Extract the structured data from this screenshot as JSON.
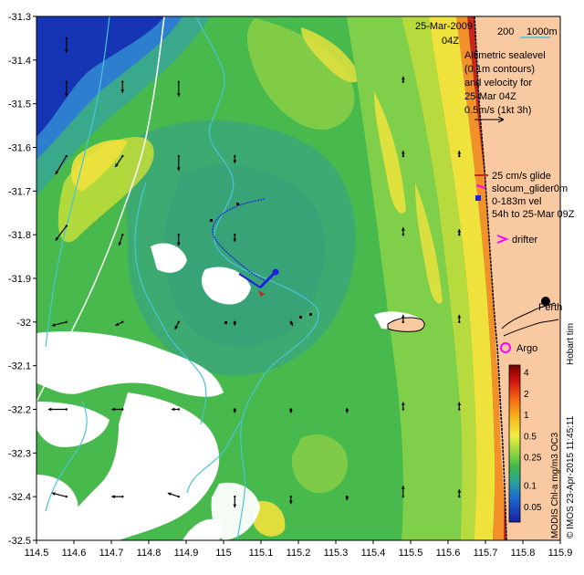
{
  "title": {
    "date": "25-Mar-2009",
    "time": "04Z"
  },
  "depth_legend": {
    "label_200": "200",
    "label_1000": "1000m"
  },
  "altimetry_note": {
    "line1": "Altimetric sealevel",
    "line2": "(0.1m contours)",
    "line3": "and velocity for",
    "line4": "25-Mar 04Z",
    "line5": "0.5m/s (1kt 3h)"
  },
  "glider_legend": {
    "line1": "25 cm/s glide",
    "line2": "slocum_glider0m",
    "line3": "0-183m vel",
    "line4": "54h to 25-Mar 09Z"
  },
  "drifter_label": "drifter",
  "argo_label": "Argo",
  "city_label": "Perth",
  "hobart_label": "Hobart tim",
  "colorbar": {
    "title": "MODIS Chl-a mg/m3 OC3",
    "ticks": [
      "4",
      "2",
      "1",
      "0.5",
      "0.25",
      "0.1",
      "0.05"
    ],
    "tick_values": [
      4,
      2,
      1,
      0.5,
      0.25,
      0.1,
      0.05
    ],
    "range": [
      0.03,
      5
    ]
  },
  "credit": "© IMOS 23-Apr-2015 11:45:11",
  "axes": {
    "x_ticks": [
      "114.5",
      "114.6",
      "114.7",
      "114.8",
      "114.9",
      "115",
      "115.1",
      "115.2",
      "115.3",
      "115.4",
      "115.5",
      "115.6",
      "115.7",
      "115.8",
      "115.9"
    ],
    "x_values": [
      114.5,
      114.6,
      114.7,
      114.8,
      114.9,
      115.0,
      115.1,
      115.2,
      115.3,
      115.4,
      115.5,
      115.6,
      115.7,
      115.8,
      115.9
    ],
    "y_ticks": [
      "-31.3",
      "-31.4",
      "-31.5",
      "-31.6",
      "-31.7",
      "-31.8",
      "-31.9",
      "-32",
      "-32.1",
      "-32.2",
      "-32.3",
      "-32.4",
      "-32.5"
    ],
    "y_values": [
      -31.3,
      -31.4,
      -31.5,
      -31.6,
      -31.7,
      -31.8,
      -31.9,
      -32.0,
      -32.1,
      -32.2,
      -32.3,
      -32.4,
      -32.5
    ],
    "xlim": [
      114.5,
      115.9
    ],
    "ylim": [
      -32.5,
      -31.3
    ]
  },
  "colors": {
    "land": "#f9c9a1",
    "deep_blue": "#1535b4",
    "mid_green": "#47b94d",
    "light_green": "#7fcf4a",
    "yellow": "#f3e33c",
    "orange": "#f2902a",
    "red": "#c8271e",
    "cloud": "#ffffff",
    "isobath": "#49c4d6",
    "glider": "#2020e0",
    "drifter": "#ff00ff"
  },
  "velocity_arrows": [
    {
      "lon": 114.58,
      "lat": -31.35,
      "u": 0.0,
      "v": -0.4
    },
    {
      "lon": 114.58,
      "lat": -31.45,
      "u": 0.0,
      "v": -0.4
    },
    {
      "lon": 114.58,
      "lat": -31.62,
      "u": -0.3,
      "v": -0.5
    },
    {
      "lon": 114.58,
      "lat": -31.78,
      "u": -0.3,
      "v": -0.4
    },
    {
      "lon": 114.58,
      "lat": -32.0,
      "u": -0.4,
      "v": -0.1
    },
    {
      "lon": 114.58,
      "lat": -32.2,
      "u": -0.5,
      "v": 0.0
    },
    {
      "lon": 114.58,
      "lat": -32.4,
      "u": -0.4,
      "v": 0.1
    },
    {
      "lon": 114.73,
      "lat": -31.45,
      "u": 0.0,
      "v": -0.3
    },
    {
      "lon": 114.73,
      "lat": -31.62,
      "u": -0.2,
      "v": -0.3
    },
    {
      "lon": 114.73,
      "lat": -31.8,
      "u": -0.1,
      "v": -0.3
    },
    {
      "lon": 114.73,
      "lat": -32.0,
      "u": -0.2,
      "v": -0.1
    },
    {
      "lon": 114.73,
      "lat": -32.2,
      "u": -0.3,
      "v": 0.0
    },
    {
      "lon": 114.73,
      "lat": -32.4,
      "u": -0.3,
      "v": 0.0
    },
    {
      "lon": 114.88,
      "lat": -31.45,
      "u": 0.0,
      "v": -0.4
    },
    {
      "lon": 114.88,
      "lat": -31.62,
      "u": 0.0,
      "v": -0.4
    },
    {
      "lon": 114.88,
      "lat": -31.8,
      "u": 0.0,
      "v": -0.3
    },
    {
      "lon": 114.88,
      "lat": -32.0,
      "u": -0.1,
      "v": -0.2
    },
    {
      "lon": 114.88,
      "lat": -32.2,
      "u": -0.2,
      "v": 0.0
    },
    {
      "lon": 114.88,
      "lat": -32.4,
      "u": -0.3,
      "v": 0.1
    },
    {
      "lon": 115.03,
      "lat": -31.62,
      "u": 0.0,
      "v": -0.2
    },
    {
      "lon": 115.03,
      "lat": -31.8,
      "u": 0.0,
      "v": -0.2
    },
    {
      "lon": 115.03,
      "lat": -32.0,
      "u": 0.0,
      "v": -0.1
    },
    {
      "lon": 115.03,
      "lat": -32.2,
      "u": 0.0,
      "v": -0.1
    },
    {
      "lon": 115.03,
      "lat": -32.4,
      "u": 0.0,
      "v": -0.3
    },
    {
      "lon": 115.18,
      "lat": -32.0,
      "u": 0.05,
      "v": -0.1
    },
    {
      "lon": 115.18,
      "lat": -32.2,
      "u": 0.0,
      "v": -0.1
    },
    {
      "lon": 115.18,
      "lat": -32.4,
      "u": 0.0,
      "v": -0.2
    },
    {
      "lon": 115.33,
      "lat": -32.2,
      "u": 0.0,
      "v": -0.1
    },
    {
      "lon": 115.33,
      "lat": -32.4,
      "u": 0.0,
      "v": -0.1
    },
    {
      "lon": 115.48,
      "lat": -31.45,
      "u": 0.0,
      "v": 0.15
    },
    {
      "lon": 115.48,
      "lat": -31.62,
      "u": 0.0,
      "v": 0.15
    },
    {
      "lon": 115.48,
      "lat": -31.8,
      "u": 0.0,
      "v": 0.2
    },
    {
      "lon": 115.48,
      "lat": -32.0,
      "u": 0.0,
      "v": 0.2
    },
    {
      "lon": 115.48,
      "lat": -32.2,
      "u": 0.0,
      "v": 0.2
    },
    {
      "lon": 115.48,
      "lat": -32.4,
      "u": 0.0,
      "v": 0.3
    },
    {
      "lon": 115.63,
      "lat": -31.62,
      "u": 0.0,
      "v": 0.15
    },
    {
      "lon": 115.63,
      "lat": -31.8,
      "u": 0.0,
      "v": 0.15
    },
    {
      "lon": 115.63,
      "lat": -32.0,
      "u": 0.0,
      "v": 0.2
    },
    {
      "lon": 115.63,
      "lat": -32.2,
      "u": 0.0,
      "v": 0.2
    },
    {
      "lon": 115.63,
      "lat": -32.4,
      "u": 0.0,
      "v": 0.2
    }
  ]
}
